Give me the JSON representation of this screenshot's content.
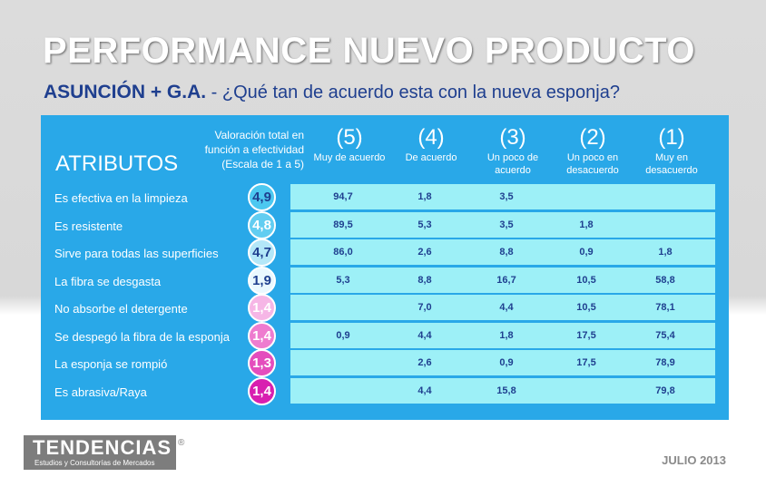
{
  "title": "PERFORMANCE NUEVO PRODUCTO",
  "subtitle": {
    "region": "ASUNCIÓN + G.A.",
    "question": " - ¿Qué tan de acuerdo esta con la nueva esponja?"
  },
  "table": {
    "attributes_header": "ATRIBUTOS",
    "valuation_header": [
      "Valoración total en",
      "función a efectividad",
      "(Escala de 1 a 5)"
    ],
    "columns": [
      {
        "num": "(5)",
        "label": "Muy de acuerdo"
      },
      {
        "num": "(4)",
        "label": "De acuerdo"
      },
      {
        "num": "(3)",
        "label": "Un poco de acuerdo"
      },
      {
        "num": "(2)",
        "label": "Un poco en desacuerdo"
      },
      {
        "num": "(1)",
        "label": "Muy en desacuerdo"
      }
    ],
    "rows": [
      {
        "label": "Es efectiva en la limpieza",
        "score": "4,9",
        "badge_color": "#4cc8f0",
        "badge_text_color": "#1f3f8f",
        "values": [
          "94,7",
          "1,8",
          "3,5",
          "",
          ""
        ]
      },
      {
        "label": "Es resistente",
        "score": "4,8",
        "badge_color": "#62cdf1",
        "badge_text_color": "#ffffff",
        "values": [
          "89,5",
          "5,3",
          "3,5",
          "1,8",
          ""
        ]
      },
      {
        "label": "Sirve para todas las superficies",
        "score": "4,7",
        "badge_color": "#b3e7f8",
        "badge_text_color": "#1f3f8f",
        "values": [
          "86,0",
          "2,6",
          "8,8",
          "0,9",
          "1,8"
        ]
      },
      {
        "label": "La fibra se desgasta",
        "score": "1,9",
        "badge_color": "#eaf8ff",
        "badge_text_color": "#1f3f8f",
        "values": [
          "5,3",
          "8,8",
          "16,7",
          "10,5",
          "58,8"
        ]
      },
      {
        "label": "No absorbe el detergente",
        "score": "1,4",
        "badge_color": "#f6b6e6",
        "badge_text_color": "#ffffff",
        "values": [
          "",
          "7,0",
          "4,4",
          "10,5",
          "78,1"
        ]
      },
      {
        "label": "Se despegó la fibra de la esponja",
        "score": "1,4",
        "badge_color": "#ee7ccf",
        "badge_text_color": "#ffffff",
        "values": [
          "0,9",
          "4,4",
          "1,8",
          "17,5",
          "75,4"
        ]
      },
      {
        "label": "La esponja se rompió",
        "score": "1,3",
        "badge_color": "#e44dbd",
        "badge_text_color": "#ffffff",
        "values": [
          "",
          "2,6",
          "0,9",
          "17,5",
          "78,9"
        ]
      },
      {
        "label": "Es abrasiva/Raya",
        "score": "1,4",
        "badge_color": "#d81fb0",
        "badge_text_color": "#ffffff",
        "values": [
          "",
          "4,4",
          "15,8",
          "",
          "79,8"
        ]
      }
    ]
  },
  "footer": {
    "logo_text": "TENDENCIAS",
    "logo_mark": "®",
    "logo_sub": "Estudios y Consultorías de Mercados",
    "date": "JULIO 2013"
  }
}
